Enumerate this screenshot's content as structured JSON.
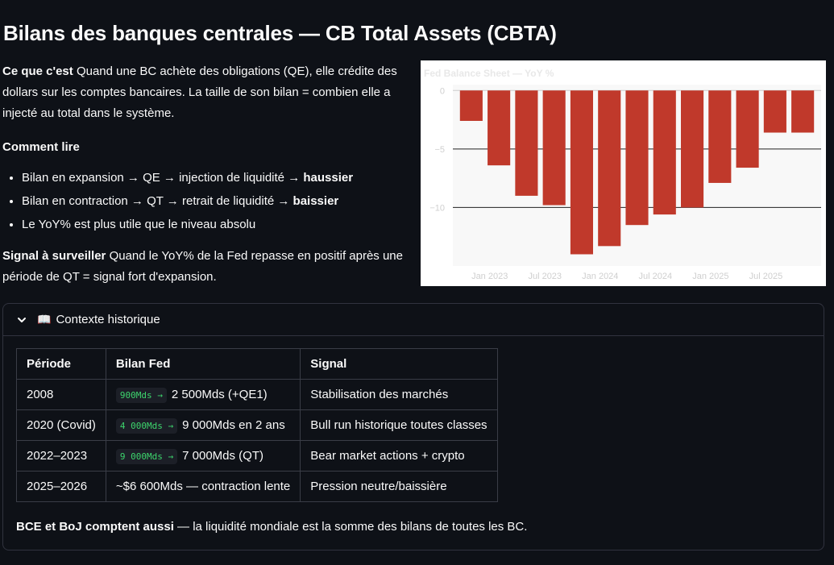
{
  "page": {
    "title": "Bilans des banques centrales — CB Total Assets (CBTA)"
  },
  "intro": {
    "what_label": "Ce que c'est",
    "what_text": "Quand une BC achète des obligations (QE), elle crédite des dollars sur les comptes bancaires. La taille de son bilan = combien elle a injecté au total dans le système.",
    "howto_title": "Comment lire",
    "bullets": [
      {
        "pre": "Bilan en expansion → QE → injection de liquidité → ",
        "bold": "haussier"
      },
      {
        "pre": "Bilan en contraction → QT → retrait de liquidité → ",
        "bold": "baissier"
      },
      {
        "pre": "Le YoY% est plus utile que le niveau absolu",
        "bold": ""
      }
    ],
    "signal_label": "Signal à surveiller",
    "signal_text": "Quand le YoY% de la Fed repasse en positif après une période de QT = signal fort d'expansion."
  },
  "chart_data": {
    "type": "bar",
    "title": "Fed Balance Sheet — YoY %",
    "x": [
      "2022-11",
      "2023-02",
      "2023-05",
      "2023-08",
      "2023-11",
      "2024-02",
      "2024-05",
      "2024-08",
      "2024-11",
      "2025-02",
      "2025-05",
      "2025-08",
      "2025-11"
    ],
    "values": [
      -2.6,
      -6.4,
      -9.0,
      -9.8,
      -14.0,
      -13.3,
      -11.5,
      -10.6,
      -10.0,
      -7.9,
      -6.6,
      -3.6,
      -3.6
    ],
    "x_ticks": [
      "Jan 2023",
      "Jul 2023",
      "Jan 2024",
      "Jul 2024",
      "Jan 2025",
      "Jul 2025"
    ],
    "x_tick_dates": [
      "2023-01",
      "2023-07",
      "2024-01",
      "2024-07",
      "2025-01",
      "2025-07"
    ],
    "y_ticks": [
      0,
      -5,
      -10
    ],
    "ylim": [
      -15,
      0.5
    ],
    "xlim": [
      "2022-09",
      "2026-01"
    ],
    "bar_color": "#c0392b",
    "grid": true,
    "colors": {
      "plot_bg": "#f8f8f8",
      "tick": "#cfcfcf",
      "zero_line": "#cccccc",
      "grid": "#222222"
    }
  },
  "expander": {
    "icon": "open-book-icon",
    "label": "Contexte historique",
    "table": {
      "headers": [
        "Période",
        "Bilan Fed",
        "Signal"
      ],
      "rows": [
        {
          "period": "2008",
          "code": "900Mds →",
          "rest": "2 500Mds (+QE1)",
          "signal": "Stabilisation des marchés"
        },
        {
          "period": "2020 (Covid)",
          "code": "4 000Mds →",
          "rest": "9 000Mds en 2 ans",
          "signal": "Bull run historique toutes classes"
        },
        {
          "period": "2022–2023",
          "code": "9 000Mds →",
          "rest": "7 000Mds (QT)",
          "signal": "Bear market actions + crypto"
        },
        {
          "period": "2025–2026",
          "code": "",
          "rest": "~$6 600Mds — contraction lente",
          "signal": "Pression neutre/baissière"
        }
      ]
    },
    "note_bold": "BCE et BoJ comptent aussi",
    "note_text": " — la liquidité mondiale est la somme des bilans de toutes les BC."
  }
}
